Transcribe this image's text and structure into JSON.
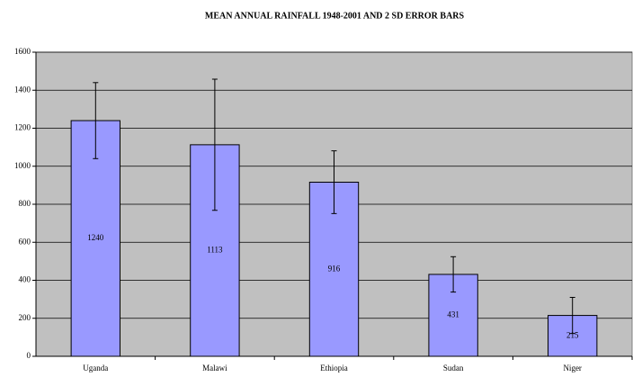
{
  "chart_data": {
    "type": "bar",
    "title": "MEAN ANNUAL RAINFALL 1948-2001 AND 2 SD ERROR BARS",
    "categories": [
      "Uganda",
      "Malawi",
      "Ethiopia",
      "Sudan",
      "Niger"
    ],
    "values": [
      1240,
      1113,
      916,
      431,
      215
    ],
    "errors": [
      200,
      345,
      165,
      93,
      95
    ],
    "color": "#9999ff",
    "ylim": [
      0,
      1600
    ],
    "yticks": [
      0,
      200,
      400,
      600,
      800,
      1000,
      1200,
      1400,
      1600
    ],
    "grid": true
  }
}
